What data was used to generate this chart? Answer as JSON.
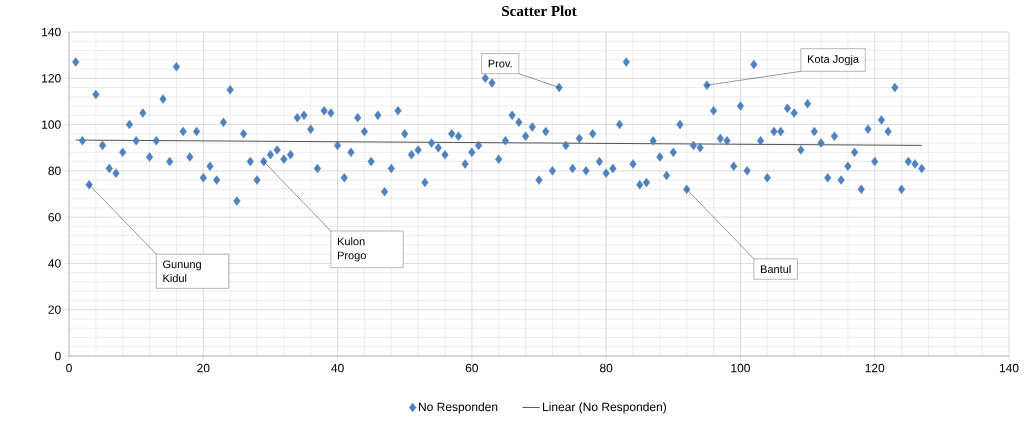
{
  "chart_data": {
    "type": "scatter",
    "title": "Scatter Plot",
    "x": [
      1,
      2,
      3,
      4,
      5,
      6,
      7,
      8,
      9,
      10,
      11,
      12,
      13,
      14,
      15,
      16,
      17,
      18,
      19,
      20,
      21,
      22,
      23,
      24,
      25,
      26,
      27,
      28,
      29,
      30,
      31,
      32,
      33,
      34,
      35,
      36,
      37,
      38,
      39,
      40,
      41,
      42,
      43,
      44,
      45,
      46,
      47,
      48,
      49,
      50,
      51,
      52,
      53,
      54,
      55,
      56,
      57,
      58,
      59,
      60,
      61,
      62,
      63,
      64,
      65,
      66,
      67,
      68,
      69,
      70,
      71,
      72,
      73,
      74,
      75,
      76,
      77,
      78,
      79,
      80,
      81,
      82,
      83,
      84,
      85,
      86,
      87,
      88,
      89,
      90,
      91,
      92,
      93,
      94,
      95,
      96,
      97,
      98,
      99,
      100,
      101,
      102,
      103,
      104,
      105,
      106,
      107,
      108,
      109,
      110,
      111,
      112,
      113,
      114,
      115,
      116,
      117,
      118,
      119,
      120,
      121,
      122,
      123,
      124,
      125,
      126,
      127
    ],
    "series": [
      {
        "name": "No Responden",
        "type": "scatter",
        "color": "#4f81bd",
        "marker": "diamond",
        "values": [
          127,
          93,
          74,
          113,
          91,
          81,
          79,
          88,
          100,
          93,
          105,
          86,
          93,
          111,
          84,
          125,
          97,
          86,
          97,
          77,
          82,
          76,
          101,
          115,
          67,
          96,
          84,
          76,
          84,
          87,
          89,
          85,
          87,
          103,
          104,
          98,
          81,
          106,
          105,
          91,
          77,
          88,
          103,
          97,
          84,
          104,
          71,
          81,
          106,
          96,
          87,
          89,
          75,
          92,
          90,
          87,
          96,
          95,
          83,
          88,
          91,
          120,
          118,
          85,
          93,
          104,
          101,
          95,
          99,
          76,
          97,
          80,
          116,
          91,
          81,
          94,
          80,
          96,
          84,
          79,
          81,
          100,
          127,
          83,
          74,
          75,
          93,
          86,
          78,
          88,
          100,
          72,
          91,
          90,
          117,
          106,
          94,
          93,
          82,
          108,
          80,
          126,
          93,
          77,
          97,
          97,
          107,
          105,
          89,
          109,
          97,
          92,
          77,
          95,
          76,
          82,
          88,
          72,
          98,
          84,
          102,
          97,
          116,
          72,
          84,
          83,
          81
        ]
      },
      {
        "name": "Linear (No Responden)",
        "type": "line",
        "color": "#404040",
        "marker": "none",
        "x": [
          1,
          127
        ],
        "values": [
          93.3,
          91
        ]
      }
    ],
    "xlim": [
      0,
      140
    ],
    "xticks": [
      0,
      20,
      40,
      60,
      80,
      100,
      120,
      140
    ],
    "ylim": [
      0,
      140
    ],
    "yticks": [
      0,
      20,
      40,
      60,
      80,
      100,
      120,
      140
    ],
    "grid": true,
    "legend": "bottom",
    "annotations": [
      {
        "text": "Gunung Kidul",
        "x": 3,
        "y": 74
      },
      {
        "text": "Kulon Progo",
        "x": 29,
        "y": 84
      },
      {
        "text": "Prov.",
        "x": 73,
        "y": 116
      },
      {
        "text": "Kota Jogja",
        "x": 95,
        "y": 117
      },
      {
        "text": "Bantul",
        "x": 92,
        "y": 72
      }
    ]
  }
}
